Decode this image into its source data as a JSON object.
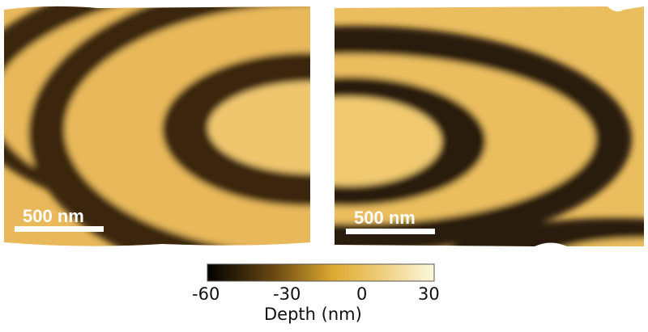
{
  "panels": [
    {
      "scale_bar": "500 nm"
    },
    {
      "scale_bar": "500 nm"
    }
  ],
  "colorbar": {
    "label": "Depth (nm)",
    "ticks": [
      "-60",
      "-30",
      "0",
      "30"
    ],
    "range": [
      -60,
      30
    ],
    "colors": [
      "#000000",
      "#5a3e10",
      "#c8951e",
      "#e6b43a",
      "#f3dc98",
      "#fbf6d8"
    ]
  },
  "colors": {
    "surface": "#e8b85a",
    "trench": "#2a1c08"
  }
}
